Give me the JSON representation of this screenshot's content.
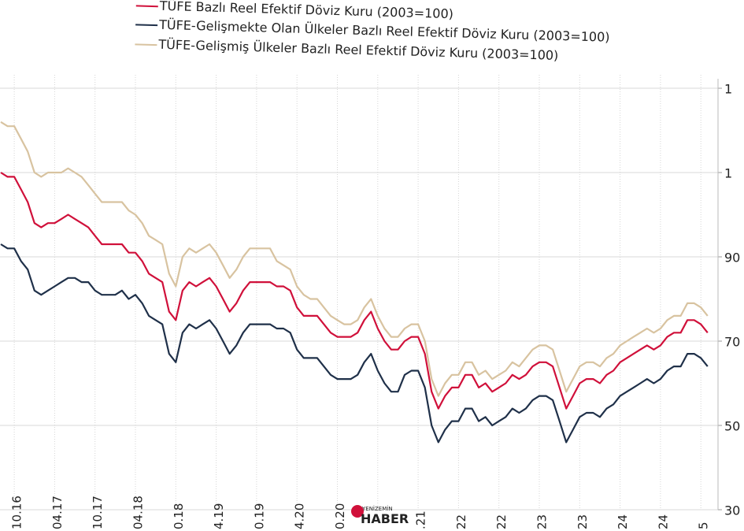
{
  "chart_data": {
    "type": "line",
    "legend_texts": [
      "TÜFE  Bazlı Reel Efektif Döviz Kuru (2003=100)",
      "TÜFE-Gelişmekte Olan Ülkeler Bazlı Reel Efektif Döviz Kuru (2003=100)",
      "TÜFE-Gelişmiş Ülkeler Bazlı Reel Efektif Döviz Kuru (2003=100)"
    ],
    "watermark": [
      "YENİZEMİN",
      "HABER"
    ],
    "categories": [
      null,
      null,
      "10.16",
      null,
      null,
      null,
      null,
      null,
      "04.17",
      null,
      null,
      null,
      null,
      null,
      "10.17",
      null,
      null,
      null,
      null,
      null,
      "04.18",
      null,
      null,
      null,
      null,
      null,
      "0.18",
      null,
      null,
      null,
      null,
      null,
      "4.19",
      null,
      null,
      null,
      null,
      null,
      "0.19",
      null,
      null,
      null,
      null,
      null,
      "4.20",
      null,
      null,
      null,
      null,
      null,
      "0.20",
      null,
      null,
      null,
      null,
      null,
      null,
      null,
      null,
      null,
      null,
      null,
      ".21",
      null,
      null,
      null,
      null,
      null,
      "22",
      null,
      null,
      null,
      null,
      null,
      "22",
      null,
      null,
      null,
      null,
      null,
      "23",
      null,
      null,
      null,
      null,
      null,
      "23",
      null,
      null,
      null,
      null,
      null,
      "24",
      null,
      null,
      null,
      null,
      null,
      "24",
      null,
      null,
      null,
      null,
      null,
      "5",
      null
    ],
    "series": [
      {
        "name": "TÜFE  Bazlı Reel Efektif Döviz Kuru (2003=100)",
        "color": "#d0103a",
        "values": [
          110,
          109,
          109,
          106,
          103,
          98,
          97,
          98,
          98,
          99,
          100,
          99,
          98,
          97,
          95,
          93,
          93,
          93,
          93,
          91,
          91,
          89,
          86,
          85,
          84,
          77,
          75,
          82,
          84,
          83,
          84,
          85,
          83,
          80,
          77,
          79,
          82,
          84,
          84,
          84,
          84,
          83,
          83,
          82,
          78,
          76,
          76,
          76,
          74,
          72,
          71,
          71,
          71,
          72,
          75,
          77,
          73,
          70,
          68,
          68,
          70,
          71,
          71,
          67,
          58,
          54,
          57,
          59,
          59,
          62,
          62,
          59,
          60,
          58,
          59,
          60,
          62,
          61,
          62,
          64,
          65,
          65,
          64,
          59,
          54,
          57,
          60,
          61,
          61,
          60,
          62,
          63,
          65,
          66,
          67,
          68,
          69,
          68,
          69,
          71,
          72,
          72,
          75,
          75,
          74,
          72
        ]
      },
      {
        "name": "TÜFE-Gelişmekte Olan Ülkeler Bazlı Reel Efektif Döviz Kuru (2003=100)",
        "color": "#1f3049",
        "values": [
          93,
          92,
          92,
          89,
          87,
          82,
          81,
          82,
          83,
          84,
          85,
          85,
          84,
          84,
          82,
          81,
          81,
          81,
          82,
          80,
          81,
          79,
          76,
          75,
          74,
          67,
          65,
          72,
          74,
          73,
          74,
          75,
          73,
          70,
          67,
          69,
          72,
          74,
          74,
          74,
          74,
          73,
          73,
          72,
          68,
          66,
          66,
          66,
          64,
          62,
          61,
          61,
          61,
          62,
          65,
          67,
          63,
          60,
          58,
          58,
          62,
          63,
          63,
          59,
          50,
          46,
          49,
          51,
          51,
          54,
          54,
          51,
          52,
          50,
          51,
          52,
          54,
          53,
          54,
          56,
          57,
          57,
          56,
          51,
          46,
          49,
          52,
          53,
          53,
          52,
          54,
          55,
          57,
          58,
          59,
          60,
          61,
          60,
          61,
          63,
          64,
          64,
          67,
          67,
          66,
          64
        ]
      },
      {
        "name": "TÜFE-Gelişmiş Ülkeler Bazlı Reel Efektif Döviz Kuru (2003=100)",
        "color": "#d8c3a0",
        "values": [
          122,
          121,
          121,
          118,
          115,
          110,
          109,
          110,
          110,
          110,
          111,
          110,
          109,
          107,
          105,
          103,
          103,
          103,
          103,
          101,
          100,
          98,
          95,
          94,
          93,
          86,
          83,
          90,
          92,
          91,
          92,
          93,
          91,
          88,
          85,
          87,
          90,
          92,
          92,
          92,
          92,
          89,
          88,
          87,
          83,
          81,
          80,
          80,
          78,
          76,
          75,
          74,
          74,
          75,
          78,
          80,
          76,
          73,
          71,
          71,
          73,
          74,
          74,
          70,
          61,
          57,
          60,
          62,
          62,
          65,
          65,
          62,
          63,
          61,
          62,
          63,
          65,
          64,
          66,
          68,
          69,
          69,
          68,
          63,
          58,
          61,
          64,
          65,
          65,
          64,
          66,
          67,
          69,
          70,
          71,
          72,
          73,
          72,
          73,
          75,
          76,
          76,
          79,
          79,
          78,
          76
        ]
      }
    ],
    "ylim": [
      30,
      131
    ],
    "yticks": [
      30,
      50,
      70,
      90,
      {
        "value": 110,
        "label": "1"
      },
      {
        "value": 130,
        "label": "1"
      }
    ],
    "grid": true
  }
}
